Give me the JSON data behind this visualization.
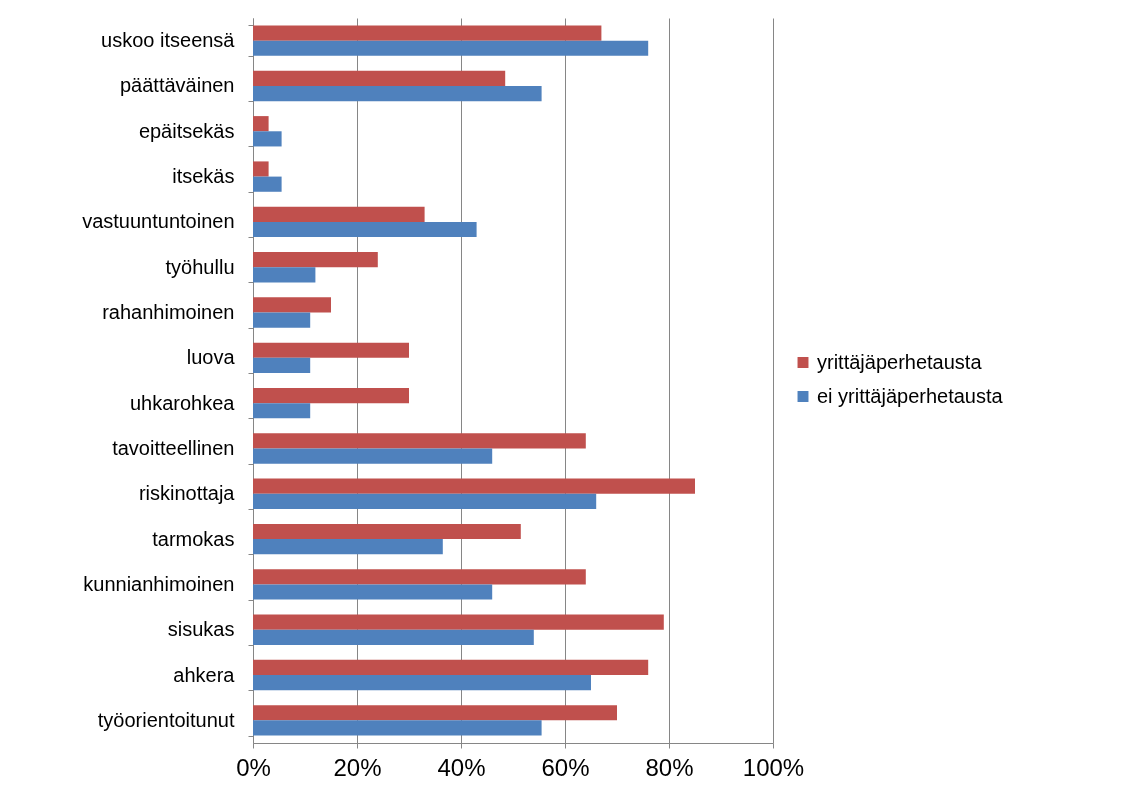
{
  "chart_data": {
    "type": "bar",
    "orientation": "horizontal",
    "categories": [
      "uskoo itseensä",
      "päättäväinen",
      "epäitsekäs",
      "itsekäs",
      "vastuuntuntoinen",
      "työhullu",
      "rahanhimoinen",
      "luova",
      "uhkarohkea",
      "tavoitteellinen",
      "riskinottaja",
      "tarmokas",
      "kunnianhimoinen",
      "sisukas",
      "ahkera",
      "työorientoitunut"
    ],
    "series": [
      {
        "name": "yrittäjäperhetausta",
        "color": "#c0504d",
        "values": [
          67,
          48.5,
          3,
          3,
          33,
          24,
          15,
          30,
          30,
          64,
          85,
          51.5,
          64,
          79,
          76,
          70
        ]
      },
      {
        "name": "ei yrittäjäperhetausta",
        "color": "#4f81bd",
        "values": [
          76,
          55.5,
          5.5,
          5.5,
          43,
          12,
          11,
          11,
          11,
          46,
          66,
          36.5,
          46,
          54,
          65,
          55.5
        ]
      }
    ],
    "xlim": [
      0,
      100
    ],
    "xticks": [
      {
        "value": 0,
        "label": "0%"
      },
      {
        "value": 20,
        "label": "20%"
      },
      {
        "value": 40,
        "label": "40%"
      },
      {
        "value": 60,
        "label": "60%"
      },
      {
        "value": 80,
        "label": "80%"
      },
      {
        "value": 100,
        "label": "100%"
      }
    ],
    "grid": "x",
    "legend": "right"
  }
}
